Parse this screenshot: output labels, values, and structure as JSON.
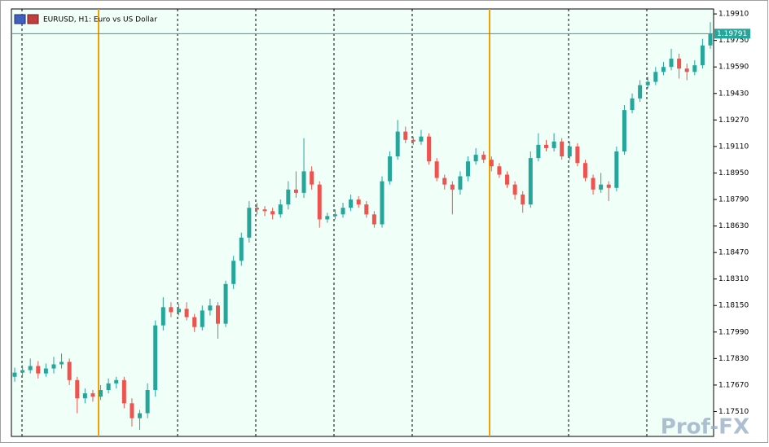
{
  "chart_data": {
    "type": "candlestick",
    "title": "EURUSD, H1:  Euro vs US Dollar",
    "watermark": "Prof-FX",
    "bull_color": "#26a69a",
    "bear_color": "#ef5350",
    "background": "#f0fff8",
    "bid_line": 1.19791,
    "ylim": [
      1.1736,
      1.1994
    ],
    "yticks": [
      {
        "value": 1.1991,
        "label": "1.19910"
      },
      {
        "value": 1.1975,
        "label": "1.19750"
      },
      {
        "value": 1.1959,
        "label": "1.19590"
      },
      {
        "value": 1.1943,
        "label": "1.19430"
      },
      {
        "value": 1.1927,
        "label": "1.19270"
      },
      {
        "value": 1.1911,
        "label": "1.19110"
      },
      {
        "value": 1.1895,
        "label": "1.18950"
      },
      {
        "value": 1.1879,
        "label": "1.18790"
      },
      {
        "value": 1.1863,
        "label": "1.18630"
      },
      {
        "value": 1.1847,
        "label": "1.18470"
      },
      {
        "value": 1.1831,
        "label": "1.18310"
      },
      {
        "value": 1.1815,
        "label": "1.18150"
      },
      {
        "value": 1.1799,
        "label": "1.17990"
      },
      {
        "value": 1.1783,
        "label": "1.17830"
      },
      {
        "value": 1.1767,
        "label": "1.17670"
      },
      {
        "value": 1.1751,
        "label": "1.17510"
      }
    ],
    "open": [
      1.1772,
      1.17745,
      1.1776,
      1.17785,
      1.1774,
      1.1777,
      1.17795,
      1.1781,
      1.177,
      1.1759,
      1.1762,
      1.176,
      1.1764,
      1.1768,
      1.177,
      1.1756,
      1.1747,
      1.175,
      1.1764,
      1.1803,
      1.1814,
      1.1811,
      1.1813,
      1.1808,
      1.1802,
      1.1812,
      1.1815,
      1.1804,
      1.1828,
      1.1842,
      1.1856,
      1.1874,
      1.1873,
      1.1872,
      1.187,
      1.1876,
      1.1885,
      1.1883,
      1.1896,
      1.1888,
      1.1867,
      1.1869,
      1.187,
      1.1874,
      1.1879,
      1.1876,
      1.187,
      1.1864,
      1.189,
      1.1905,
      1.192,
      1.1915,
      1.1914,
      1.1917,
      1.1902,
      1.1892,
      1.1888,
      1.1885,
      1.1893,
      1.1902,
      1.1906,
      1.1903,
      1.1899,
      1.1894,
      1.1888,
      1.1882,
      1.1876,
      1.1904,
      1.1912,
      1.191,
      1.1914,
      1.1905,
      1.1911,
      1.1901,
      1.1892,
      1.1885,
      1.1888,
      1.1886,
      1.1908,
      1.1933,
      1.194,
      1.1948,
      1.195,
      1.1956,
      1.1959,
      1.1964,
      1.1958,
      1.1956,
      1.196,
      1.1972
    ],
    "high": [
      1.17775,
      1.1779,
      1.1783,
      1.17815,
      1.178,
      1.1784,
      1.1786,
      1.1783,
      1.1772,
      1.1765,
      1.1764,
      1.1767,
      1.1771,
      1.1772,
      1.1772,
      1.1759,
      1.1752,
      1.1768,
      1.1806,
      1.182,
      1.1817,
      1.1816,
      1.1817,
      1.181,
      1.1815,
      1.1819,
      1.1817,
      1.183,
      1.1845,
      1.1859,
      1.1878,
      1.1877,
      1.1875,
      1.1874,
      1.1879,
      1.189,
      1.1896,
      1.1916,
      1.1899,
      1.189,
      1.1871,
      1.1873,
      1.1877,
      1.1882,
      1.1881,
      1.1878,
      1.1872,
      1.1893,
      1.1908,
      1.1927,
      1.1923,
      1.1917,
      1.1921,
      1.1919,
      1.1904,
      1.1894,
      1.189,
      1.1896,
      1.1905,
      1.191,
      1.1908,
      1.1905,
      1.1901,
      1.1896,
      1.189,
      1.1884,
      1.1908,
      1.1919,
      1.1915,
      1.1919,
      1.1916,
      1.1914,
      1.1913,
      1.1903,
      1.1894,
      1.1895,
      1.189,
      1.1911,
      1.1936,
      1.1943,
      1.1951,
      1.1953,
      1.1959,
      1.1962,
      1.197,
      1.1967,
      1.1961,
      1.1963,
      1.1976,
      1.1986
    ],
    "low": [
      1.1769,
      1.1772,
      1.1774,
      1.1771,
      1.1772,
      1.1774,
      1.1777,
      1.1767,
      1.175,
      1.1756,
      1.1757,
      1.1758,
      1.1762,
      1.1765,
      1.1753,
      1.1742,
      1.174,
      1.1747,
      1.176,
      1.18,
      1.1808,
      1.1809,
      1.1806,
      1.1799,
      1.18,
      1.1809,
      1.1795,
      1.1802,
      1.1825,
      1.1839,
      1.1853,
      1.187,
      1.1869,
      1.1867,
      1.1868,
      1.1873,
      1.188,
      1.188,
      1.1885,
      1.1862,
      1.1865,
      1.1867,
      1.1868,
      1.1872,
      1.1874,
      1.1868,
      1.1862,
      1.1862,
      1.1888,
      1.1903,
      1.1913,
      1.1912,
      1.1912,
      1.19,
      1.189,
      1.1885,
      1.187,
      1.1882,
      1.189,
      1.19,
      1.1901,
      1.1896,
      1.1892,
      1.1886,
      1.1879,
      1.1871,
      1.1874,
      1.1902,
      1.1908,
      1.1908,
      1.1903,
      1.1903,
      1.1899,
      1.189,
      1.1882,
      1.1883,
      1.1878,
      1.1884,
      1.1906,
      1.1931,
      1.1938,
      1.1946,
      1.1948,
      1.1954,
      1.1957,
      1.1952,
      1.1951,
      1.1954,
      1.1958,
      1.197
    ],
    "close": [
      1.17745,
      1.1776,
      1.17785,
      1.1774,
      1.1777,
      1.17795,
      1.1781,
      1.177,
      1.1759,
      1.1762,
      1.176,
      1.1764,
      1.1768,
      1.177,
      1.1756,
      1.1747,
      1.175,
      1.1764,
      1.1803,
      1.1814,
      1.1811,
      1.1813,
      1.1808,
      1.1802,
      1.1812,
      1.1815,
      1.1804,
      1.1828,
      1.1842,
      1.1856,
      1.1874,
      1.1873,
      1.1872,
      1.187,
      1.1876,
      1.1885,
      1.1883,
      1.1896,
      1.1888,
      1.1867,
      1.1869,
      1.187,
      1.1874,
      1.1879,
      1.1876,
      1.187,
      1.1864,
      1.189,
      1.1905,
      1.192,
      1.1915,
      1.1914,
      1.1917,
      1.1902,
      1.1892,
      1.1888,
      1.1885,
      1.1893,
      1.1902,
      1.1906,
      1.1903,
      1.1899,
      1.1894,
      1.1888,
      1.1882,
      1.1876,
      1.1904,
      1.1912,
      1.191,
      1.1914,
      1.1905,
      1.1911,
      1.1901,
      1.1892,
      1.1885,
      1.1888,
      1.1886,
      1.1908,
      1.1933,
      1.194,
      1.1948,
      1.195,
      1.1956,
      1.1959,
      1.1964,
      1.1958,
      1.1956,
      1.196,
      1.1972,
      1.19791
    ]
  }
}
